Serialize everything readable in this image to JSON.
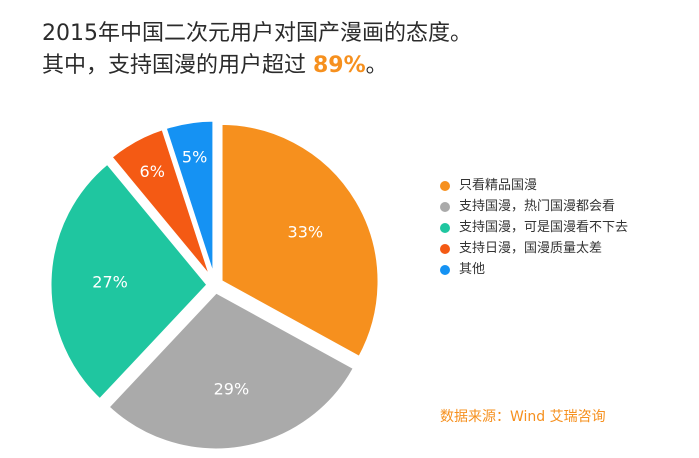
{
  "title": {
    "line1": "2015年中国二次元用户对国产漫画的态度。",
    "line2_prefix": "其中，支持国漫的用户超过 ",
    "line2_highlight": "89%",
    "line2_suffix": "。"
  },
  "chart_data": {
    "type": "pie",
    "title": "2015年中国二次元用户对国产漫画的态度。",
    "categories": [
      "只看精品国漫",
      "支持国漫，热门国漫都会看",
      "支持国漫，可是国漫看不下去",
      "支持日漫，国漫质量太差",
      "其他"
    ],
    "values": [
      33,
      29,
      27,
      6,
      5
    ],
    "labels": [
      "33%",
      "29%",
      "27%",
      "6%",
      "5%"
    ],
    "colors": [
      "#f6901e",
      "#aaaaaa",
      "#1fc6a0",
      "#f45a14",
      "#1592f3"
    ],
    "legend_position": "right",
    "exploded": true
  },
  "source": "数据来源：Wind 艾瑞咨询"
}
